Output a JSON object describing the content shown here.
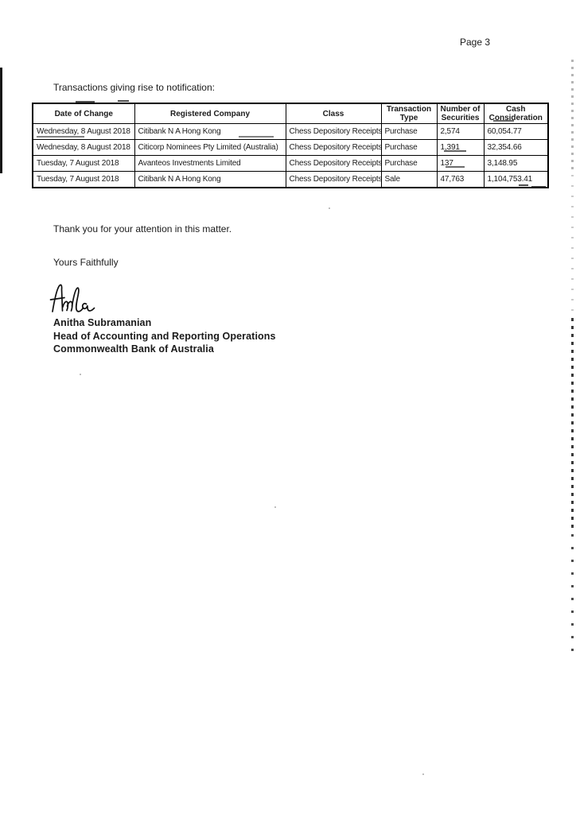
{
  "page": {
    "number_label": "Page 3"
  },
  "body": {
    "intro": "Transactions giving rise to notification:",
    "thanks": "Thank you for your attention in this matter.",
    "valediction": "Yours Faithfully",
    "signatory": {
      "name": "Anitha Subramanian",
      "title": "Head of Accounting and Reporting Operations",
      "organisation": "Commonwealth Bank of Australia"
    }
  },
  "table": {
    "headers": [
      "Date of Change",
      "Registered Company",
      "Class",
      "Transaction Type",
      "Number of Securities",
      "Cash Consideration"
    ],
    "rows": [
      [
        "Wednesday, 8 August 2018",
        "Citibank N A Hong Kong",
        "Chess Depository Receipts",
        "Purchase",
        "2,574",
        "60,054.77"
      ],
      [
        "Wednesday, 8 August 2018",
        "Citicorp Nominees Pty Limited (Australia)",
        "Chess Depository Receipts",
        "Purchase",
        "1,391",
        "32,354.66"
      ],
      [
        "Tuesday, 7 August 2018",
        "Avanteos Investments Limited",
        "Chess Depository Receipts",
        "Purchase",
        "137",
        "3,148.95"
      ],
      [
        "Tuesday, 7 August 2018",
        "Citibank N A Hong Kong",
        "Chess Depository Receipts",
        "Sale",
        "47,763",
        "1,104,753.41"
      ]
    ]
  },
  "colors": {
    "ink": "#1a1a1a",
    "table_border": "#000000"
  }
}
